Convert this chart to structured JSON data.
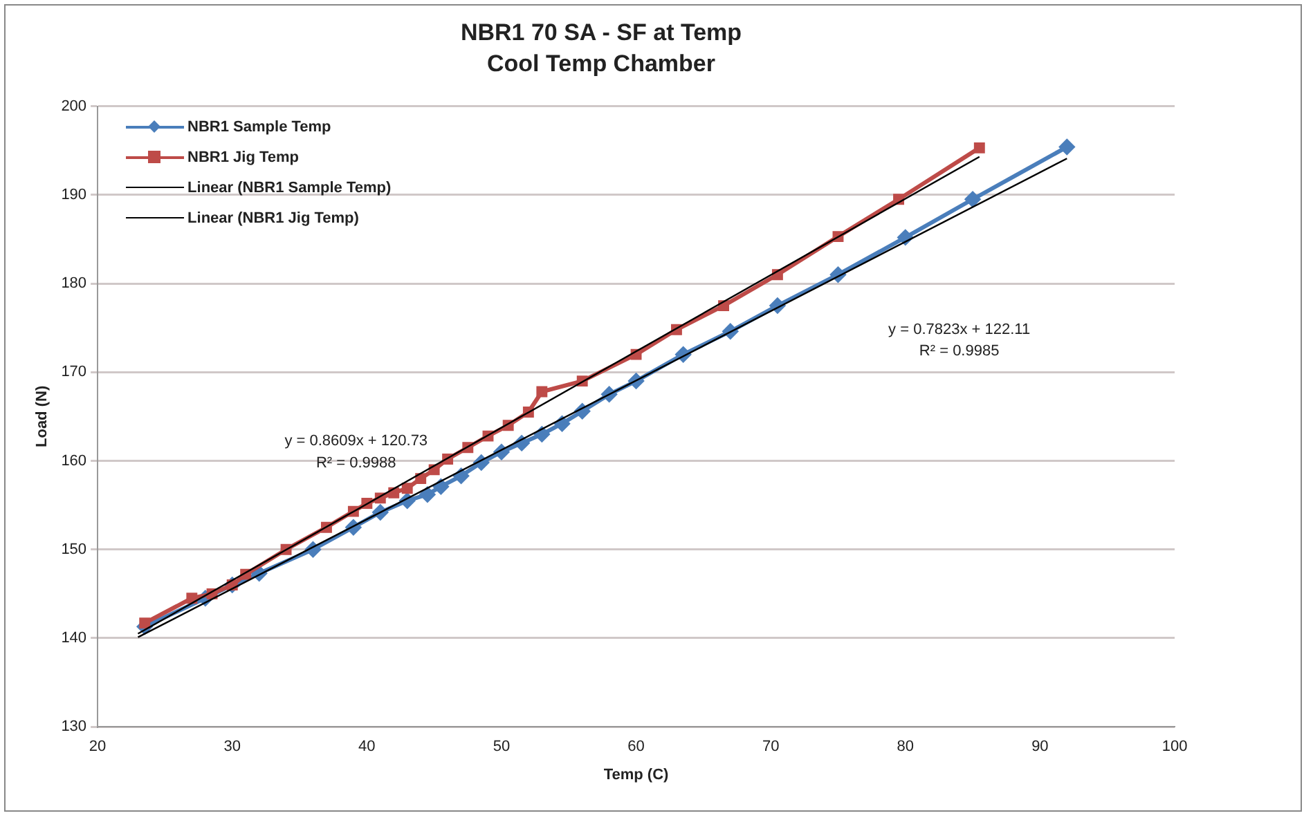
{
  "chart_data": {
    "type": "line",
    "title": "NBR1 70 SA - SF at Temp",
    "subtitle": "Cool Temp Chamber",
    "xlabel": "Temp (C)",
    "ylabel": "Load (N)",
    "xlim": [
      20,
      100
    ],
    "xticks": [
      20,
      30,
      40,
      50,
      60,
      70,
      80,
      90,
      100
    ],
    "ylim": [
      130,
      200
    ],
    "yticks": [
      130,
      140,
      150,
      160,
      170,
      180,
      190,
      200
    ],
    "grid": "y",
    "legend": "top left",
    "series": [
      {
        "name": "NBR1 Sample Temp",
        "color": "#4a7ebb",
        "marker": "diamond",
        "x": [
          23.5,
          28,
          30,
          32,
          36,
          39,
          41,
          43,
          44.5,
          45.5,
          47,
          48.5,
          50,
          51.5,
          53,
          54.5,
          56,
          58,
          60,
          63.5,
          67,
          70.5,
          75,
          80,
          85,
          92
        ],
        "values": [
          141.3,
          144.5,
          146,
          147.3,
          150,
          152.5,
          154.2,
          155.5,
          156.2,
          157.1,
          158.3,
          159.8,
          161,
          162,
          163,
          164.2,
          165.6,
          167.5,
          169,
          172,
          174.6,
          177.5,
          181,
          185.2,
          189.5,
          195.4
        ]
      },
      {
        "name": "NBR1 Jig Temp",
        "color": "#be4b48",
        "marker": "square",
        "x": [
          23.5,
          27,
          28.5,
          30,
          31,
          34,
          37,
          39,
          40,
          41,
          42,
          43,
          44,
          45,
          46,
          47.5,
          49,
          50.5,
          52,
          53,
          56,
          60,
          63,
          66.5,
          70.5,
          75,
          79.5,
          85.5
        ],
        "values": [
          141.7,
          144.5,
          145,
          146,
          147.2,
          150,
          152.5,
          154.3,
          155.2,
          155.8,
          156.4,
          156.9,
          158,
          159,
          160.2,
          161.5,
          162.8,
          164,
          165.5,
          167.8,
          169,
          172,
          174.8,
          177.5,
          181,
          185.3,
          189.5,
          195.3
        ]
      },
      {
        "name": "Linear (NBR1 Sample Temp)",
        "color": "#000000",
        "marker": "none",
        "x": [
          23,
          92
        ],
        "values": [
          140.1,
          194.1
        ]
      },
      {
        "name": "Linear (NBR1 Jig Temp)",
        "color": "#000000",
        "marker": "none",
        "x": [
          23,
          85.5
        ],
        "values": [
          140.5,
          194.3
        ]
      }
    ],
    "annotations": [
      "y = 0.8609x + 120.73",
      "R² = 0.9988",
      "y = 0.7823x + 122.11",
      "R² = 0.9985"
    ]
  }
}
